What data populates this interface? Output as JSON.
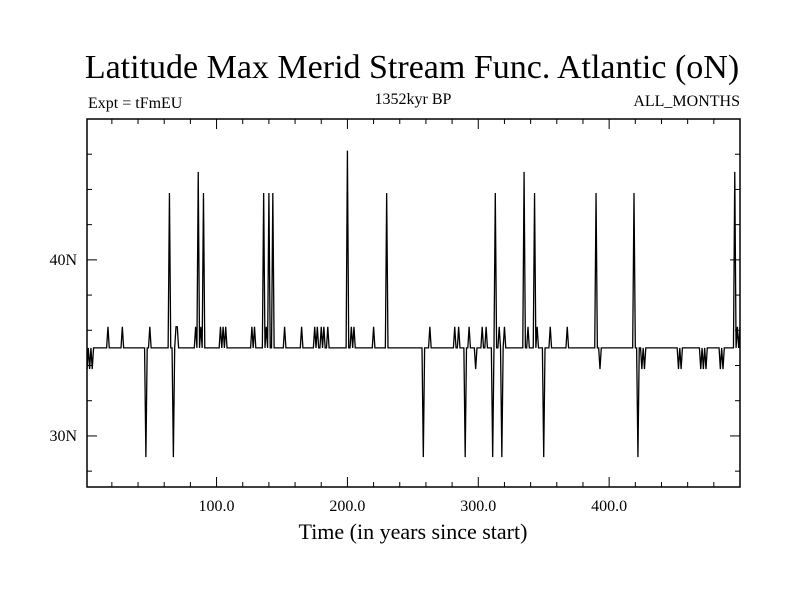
{
  "chart_data": {
    "type": "line",
    "title": "Latitude Max Merid Stream Func. Atlantic (oN)",
    "subtitle_left": "Expt = tFmEU",
    "subtitle_center": "1352kyr BP",
    "subtitle_right": "ALL_MONTHS",
    "xlabel": "Time (in years since start)",
    "ylabel": "",
    "xlim": [
      1,
      500
    ],
    "ylim": [
      27.1,
      48.0
    ],
    "x_major_ticks": [
      100,
      200,
      300,
      400
    ],
    "x_tick_labels": [
      "100.0",
      "200.0",
      "300.0",
      "400.0"
    ],
    "x_minor_step": 20,
    "y_major_ticks": [
      30,
      40
    ],
    "y_tick_labels": [
      "30N",
      "40N"
    ],
    "y_minor_step": 2,
    "grid": false,
    "series": [
      {
        "baseline": 35.0,
        "events": [
          [
            1,
            33.8
          ],
          [
            3,
            33.8
          ],
          [
            4,
            35.0
          ],
          [
            5,
            33.8
          ],
          [
            6,
            35.0
          ],
          [
            17,
            36.2
          ],
          [
            28,
            36.2
          ],
          [
            46,
            28.8
          ],
          [
            49,
            36.2
          ],
          [
            64,
            43.8
          ],
          [
            67,
            28.8
          ],
          [
            69,
            36.2
          ],
          [
            70,
            36.2
          ],
          [
            84,
            36.2
          ],
          [
            86,
            45.0
          ],
          [
            88,
            36.2
          ],
          [
            90,
            43.8
          ],
          [
            103,
            36.2
          ],
          [
            105,
            36.2
          ],
          [
            107,
            36.2
          ],
          [
            127,
            36.2
          ],
          [
            129,
            36.2
          ],
          [
            136,
            43.8
          ],
          [
            138,
            36.2
          ],
          [
            140,
            43.8
          ],
          [
            143,
            43.8
          ],
          [
            152,
            36.2
          ],
          [
            165,
            36.2
          ],
          [
            175,
            36.2
          ],
          [
            177,
            36.2
          ],
          [
            180,
            36.2
          ],
          [
            182,
            36.2
          ],
          [
            185,
            36.2
          ],
          [
            200,
            46.2
          ],
          [
            203,
            36.2
          ],
          [
            205,
            36.2
          ],
          [
            220,
            36.2
          ],
          [
            230,
            43.8
          ],
          [
            258,
            28.8
          ],
          [
            263,
            36.2
          ],
          [
            282,
            36.2
          ],
          [
            285,
            36.2
          ],
          [
            290,
            28.8
          ],
          [
            293,
            36.2
          ],
          [
            298,
            33.8
          ],
          [
            303,
            36.2
          ],
          [
            306,
            36.2
          ],
          [
            311,
            28.8
          ],
          [
            313,
            43.8
          ],
          [
            316,
            36.2
          ],
          [
            318,
            28.8
          ],
          [
            320,
            36.2
          ],
          [
            335,
            45.0
          ],
          [
            338,
            36.2
          ],
          [
            343,
            43.8
          ],
          [
            345,
            36.2
          ],
          [
            350,
            28.8
          ],
          [
            355,
            36.2
          ],
          [
            368,
            36.2
          ],
          [
            390,
            43.8
          ],
          [
            393,
            33.8
          ],
          [
            419,
            43.8
          ],
          [
            422,
            28.8
          ],
          [
            425,
            33.8
          ],
          [
            427,
            33.8
          ],
          [
            453,
            33.8
          ],
          [
            455,
            33.8
          ],
          [
            470,
            33.8
          ],
          [
            472,
            33.8
          ],
          [
            474,
            33.8
          ],
          [
            485,
            33.8
          ],
          [
            487,
            33.8
          ],
          [
            496,
            45.0
          ],
          [
            498,
            36.2
          ],
          [
            500,
            36.2
          ]
        ]
      }
    ]
  }
}
